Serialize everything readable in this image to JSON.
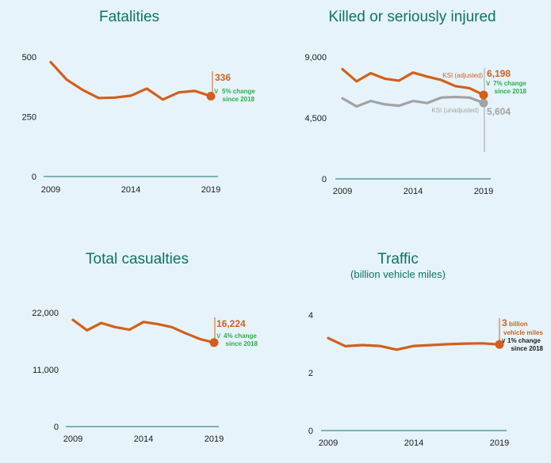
{
  "colors": {
    "accent": "#d35f1b",
    "grey": "#a3a3a3",
    "axis": "#3e8b86",
    "title": "#0f7360",
    "green": "#2aae4a",
    "text": "#1a1a1a"
  },
  "chart_data": [
    {
      "type": "line",
      "title": "Fatalities",
      "subtitle": "",
      "x": [
        2009,
        2010,
        2011,
        2012,
        2013,
        2014,
        2015,
        2016,
        2017,
        2018,
        2019
      ],
      "xticks": [
        "2009",
        "2014",
        "2019"
      ],
      "yticks": [
        "0",
        "250",
        "500"
      ],
      "ylim": [
        0,
        500
      ],
      "series": [
        {
          "name": "Fatalities",
          "color": "#d35f1b",
          "values": [
            478,
            405,
            362,
            328,
            330,
            338,
            368,
            322,
            352,
            358,
            336
          ]
        }
      ],
      "callout": {
        "value": "336",
        "change": "5% change",
        "since": "since 2018"
      }
    },
    {
      "type": "line",
      "title": "Killed or seriously injured",
      "subtitle": "",
      "x": [
        2009,
        2010,
        2011,
        2012,
        2013,
        2014,
        2015,
        2016,
        2017,
        2018,
        2019
      ],
      "xticks": [
        "2009",
        "2014",
        "2019"
      ],
      "yticks": [
        "0",
        "4,500",
        "9,000"
      ],
      "ylim": [
        0,
        9000
      ],
      "series": [
        {
          "name": "KSI (adjusted)",
          "label": "KSI (adjusted)",
          "color": "#d35f1b",
          "values": [
            8100,
            7200,
            7800,
            7400,
            7250,
            7850,
            7550,
            7300,
            6850,
            6700,
            6198
          ]
        },
        {
          "name": "KSI (unadjusted)",
          "label": "KSI (unadjusted)",
          "color": "#a3a3a3",
          "values": [
            5950,
            5350,
            5750,
            5500,
            5400,
            5750,
            5600,
            6000,
            6050,
            6000,
            5604
          ]
        }
      ],
      "callout": {
        "value": "6,198",
        "change": "7% change",
        "since": "since 2018",
        "value2": "5,604"
      }
    },
    {
      "type": "line",
      "title": "Total casualties",
      "subtitle": "",
      "x": [
        2009,
        2010,
        2011,
        2012,
        2013,
        2014,
        2015,
        2016,
        2017,
        2018,
        2019
      ],
      "xticks": [
        "2009",
        "2014",
        "2019"
      ],
      "yticks": [
        "0",
        "11,000",
        "22,000"
      ],
      "ylim": [
        0,
        22000
      ],
      "series": [
        {
          "name": "Total casualties",
          "color": "#d35f1b",
          "values": [
            20600,
            18600,
            20000,
            19200,
            18700,
            20200,
            19800,
            19200,
            18000,
            16900,
            16224
          ]
        }
      ],
      "callout": {
        "value": "16,224",
        "change": "4% change",
        "since": "since 2018"
      }
    },
    {
      "type": "line",
      "title": "Traffic",
      "subtitle": "(billion vehicle miles)",
      "x": [
        2009,
        2010,
        2011,
        2012,
        2013,
        2014,
        2015,
        2016,
        2017,
        2018,
        2019
      ],
      "xticks": [
        "2009",
        "2014",
        "2019"
      ],
      "yticks": [
        "0",
        "2",
        "4"
      ],
      "ylim": [
        0,
        4
      ],
      "series": [
        {
          "name": "Traffic",
          "color": "#d35f1b",
          "values": [
            3.2,
            2.92,
            2.96,
            2.93,
            2.8,
            2.93,
            2.96,
            2.99,
            3.01,
            3.02,
            2.98
          ]
        }
      ],
      "callout": {
        "value": "3",
        "value_suffix": "billion",
        "value_suffix2": "vehicle miles",
        "change": "1% change",
        "since": "since 2018"
      }
    }
  ]
}
